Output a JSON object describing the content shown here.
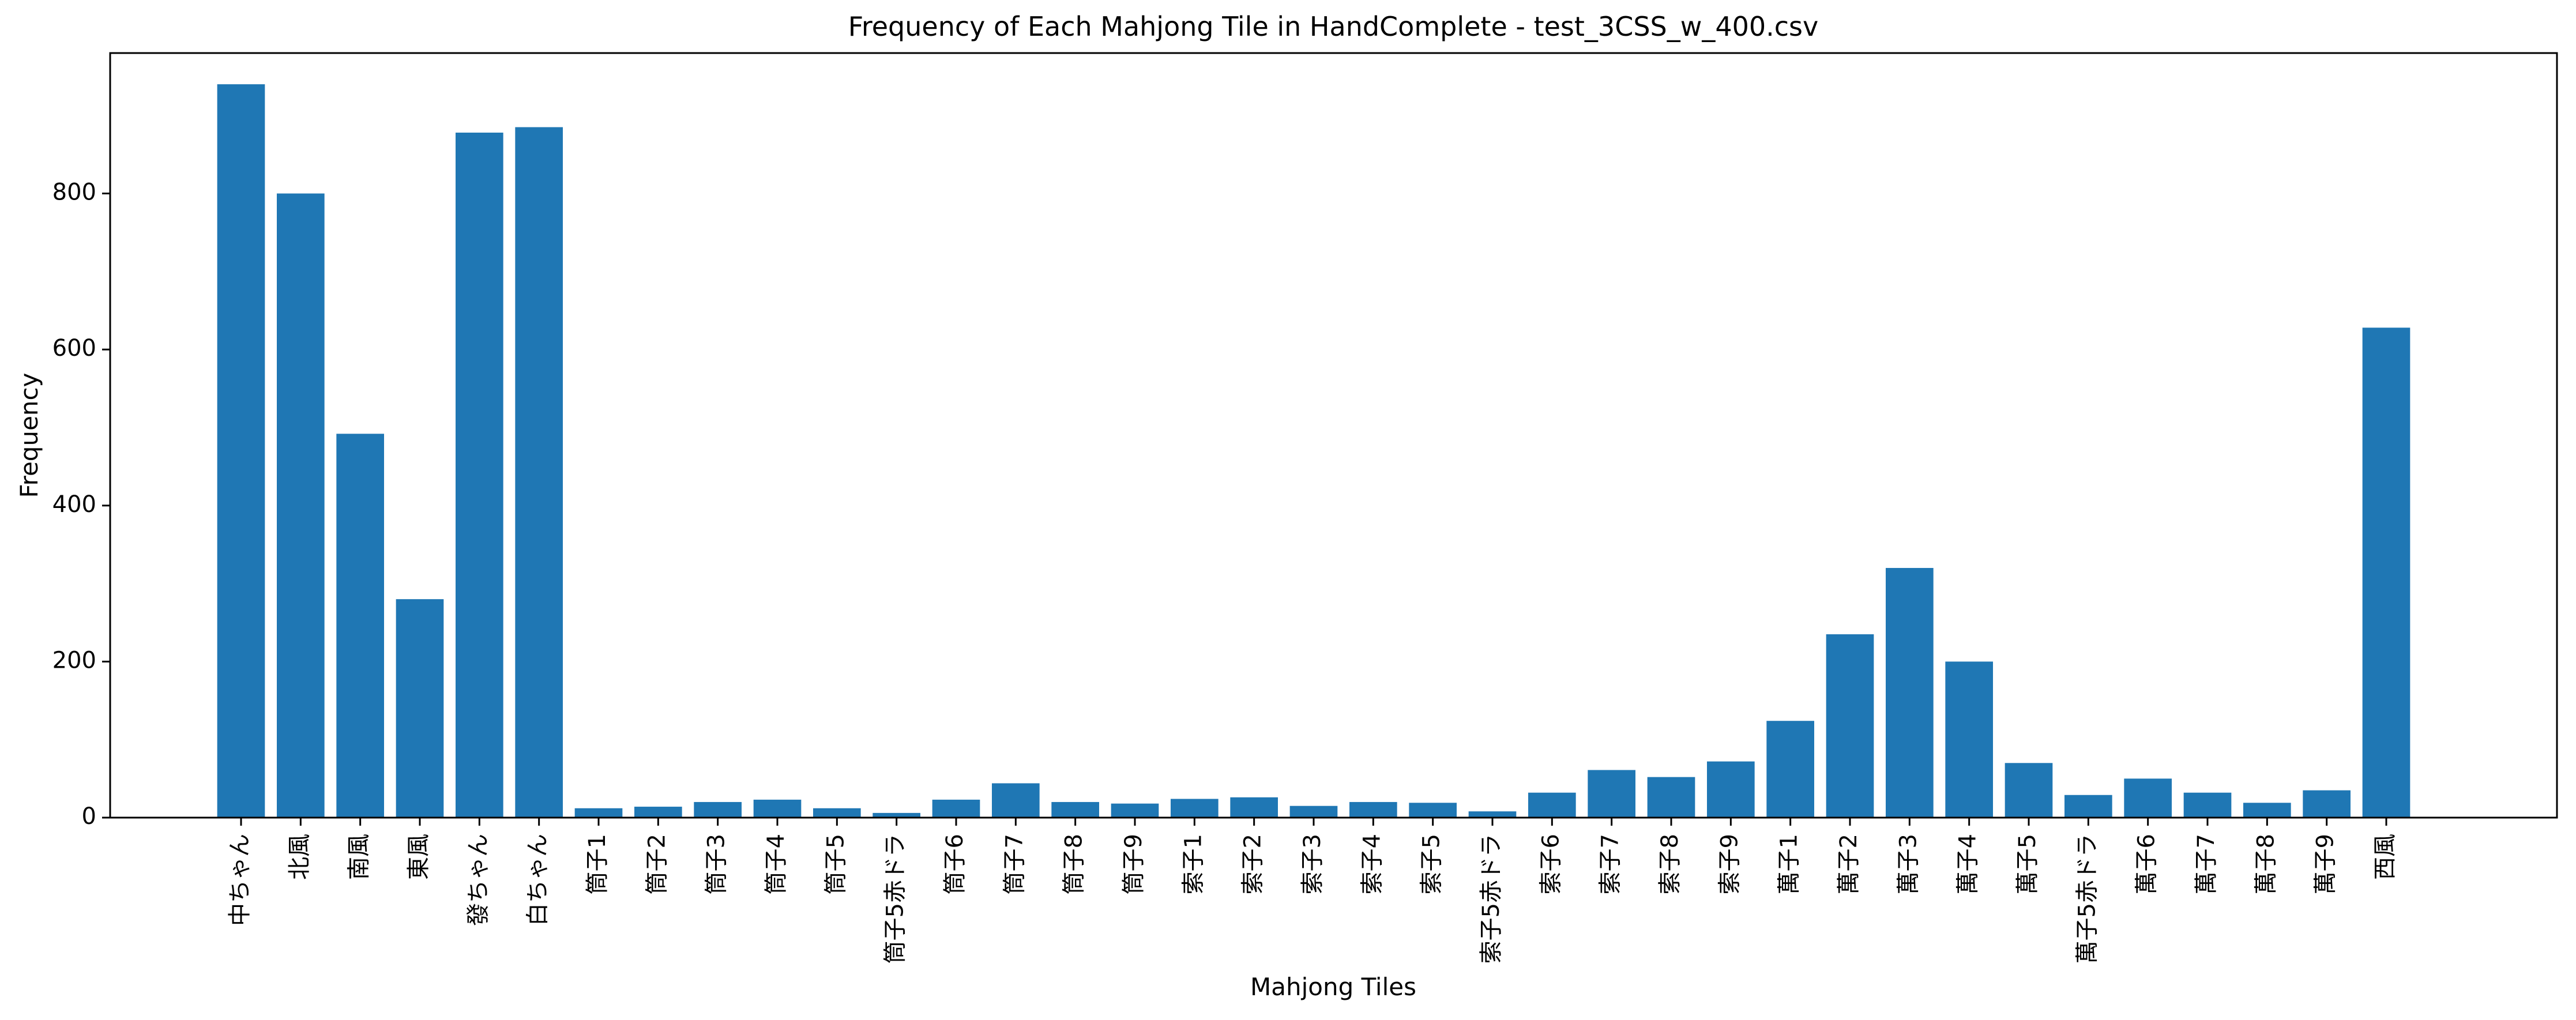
{
  "chart_data": {
    "type": "bar",
    "title": "Frequency of Each Mahjong Tile in HandComplete - test_3CSS_w_400.csv",
    "xlabel": "Mahjong Tiles",
    "ylabel": "Frequency",
    "ylim": [
      0,
      980
    ],
    "yticks": [
      0,
      200,
      400,
      600,
      800
    ],
    "grid": false,
    "bar_color": "#1f77b4",
    "categories": [
      "中ちゃん",
      "北風",
      "南風",
      "東風",
      "發ちゃん",
      "白ちゃん",
      "筒子1",
      "筒子2",
      "筒子3",
      "筒子4",
      "筒子5",
      "筒子5赤ドラ",
      "筒子6",
      "筒子7",
      "筒子8",
      "筒子9",
      "索子1",
      "索子2",
      "索子3",
      "索子4",
      "索子5",
      "索子5赤ドラ",
      "索子6",
      "索子7",
      "索子8",
      "索子9",
      "萬子1",
      "萬子2",
      "萬子3",
      "萬子4",
      "萬子5",
      "萬子5赤ドラ",
      "萬子6",
      "萬子7",
      "萬子8",
      "萬子9",
      "西風"
    ],
    "values": [
      940,
      800,
      492,
      280,
      878,
      885,
      12,
      14,
      20,
      23,
      12,
      6,
      23,
      44,
      20,
      18,
      24,
      26,
      15,
      20,
      19,
      8,
      32,
      61,
      52,
      72,
      124,
      235,
      320,
      200,
      70,
      29,
      50,
      32,
      19,
      35,
      628
    ]
  }
}
